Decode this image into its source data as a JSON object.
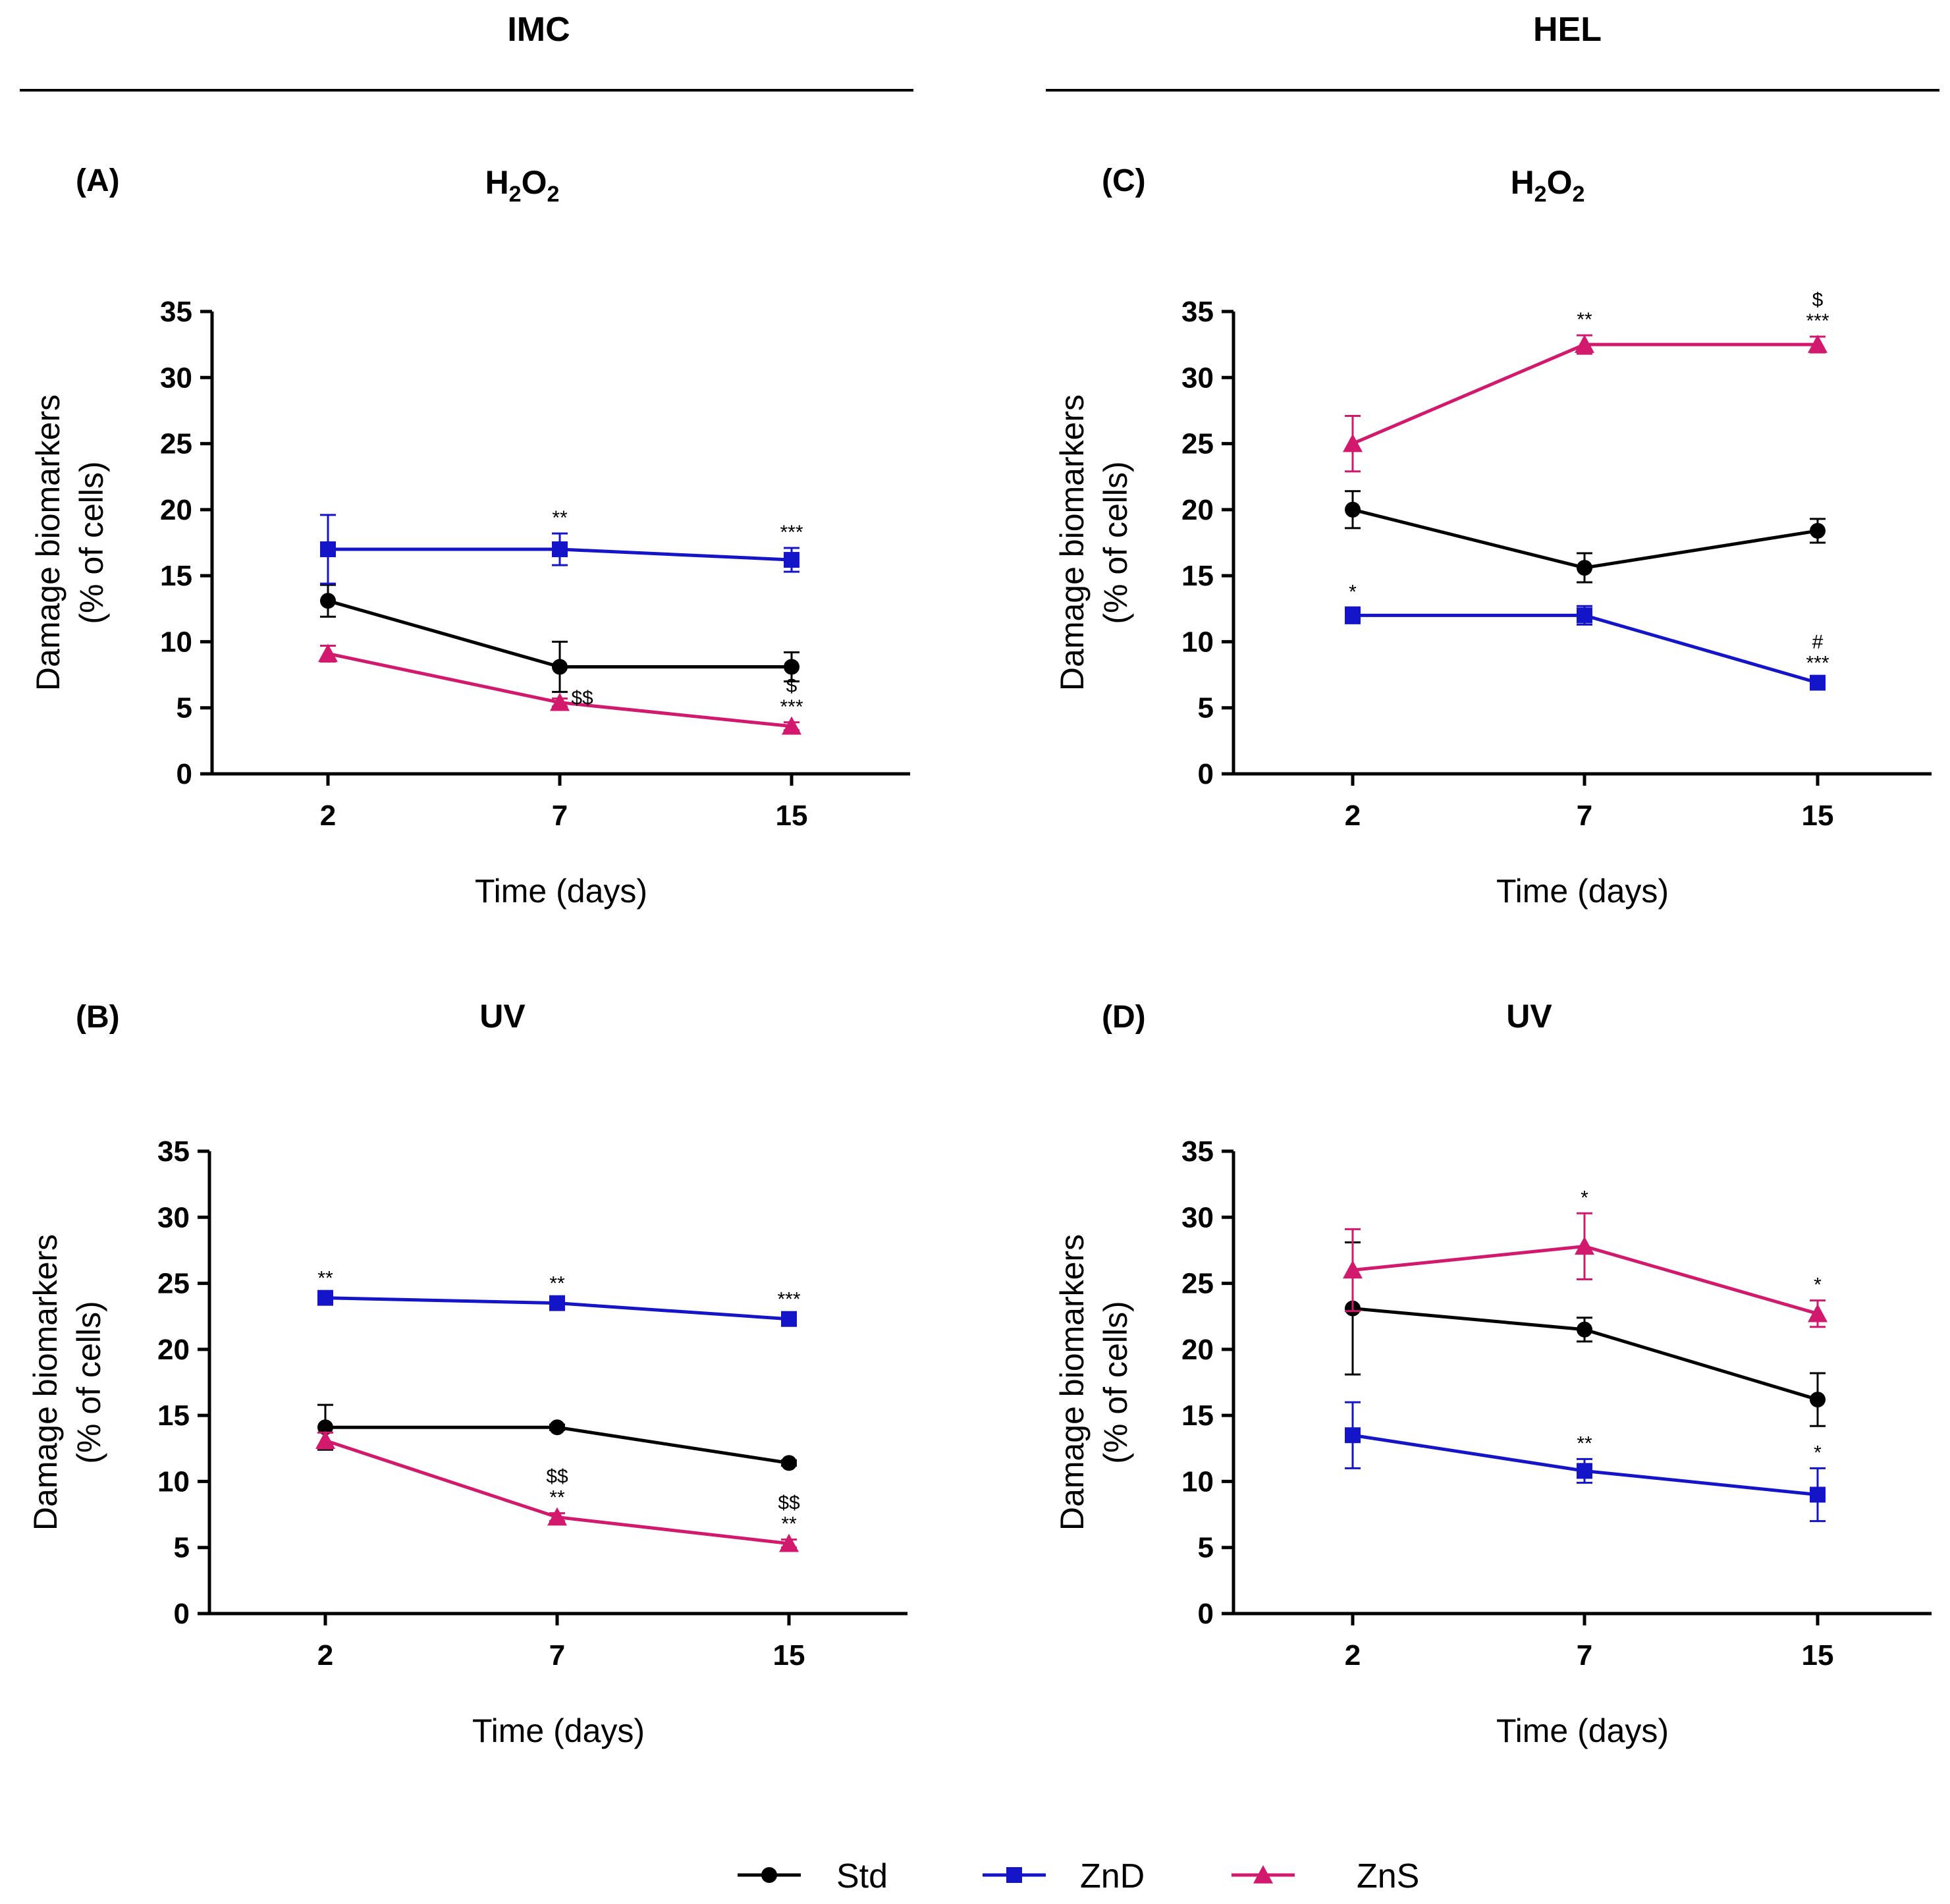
{
  "groups": [
    {
      "title": "IMC"
    },
    {
      "title": "HEL"
    }
  ],
  "colors": {
    "Std": "#000000",
    "ZnD": "#1414c8",
    "ZnS": "#d2196e"
  },
  "legend": [
    {
      "name": "Std",
      "marker": "circle"
    },
    {
      "name": "ZnD",
      "marker": "square"
    },
    {
      "name": "ZnS",
      "marker": "triangle"
    }
  ],
  "chart_data": [
    {
      "type": "line",
      "letter": "(A)",
      "title_main": "H",
      "title_sub1": "2",
      "title_mid": "O",
      "title_sub2": "2",
      "xlabel": "Time (days)",
      "ylabel_line1": "Damage biomarkers",
      "ylabel_line2": "(% of cells)",
      "categories": [
        "2",
        "7",
        "15"
      ],
      "ylim": [
        0,
        35
      ],
      "yticks": [
        "0",
        "5",
        "10",
        "15",
        "20",
        "25",
        "30",
        "35"
      ],
      "series": [
        {
          "name": "Std",
          "values": [
            13.1,
            8.1,
            8.1
          ],
          "errors": [
            1.2,
            1.9,
            1.1
          ],
          "annotations": [
            "",
            "",
            ""
          ]
        },
        {
          "name": "ZnD",
          "values": [
            17.0,
            17.0,
            16.2
          ],
          "errors": [
            2.6,
            1.2,
            0.9
          ],
          "annotations": [
            "",
            "**",
            "***"
          ]
        },
        {
          "name": "ZnS",
          "values": [
            9.1,
            5.4,
            3.6
          ],
          "errors": [
            0.6,
            0.3,
            0.3
          ],
          "annotations": [
            "",
            "$$",
            "$\n***"
          ]
        }
      ]
    },
    {
      "type": "line",
      "letter": "(B)",
      "title_main": "UV",
      "title_sub1": "",
      "title_mid": "",
      "title_sub2": "",
      "xlabel": "Time (days)",
      "ylabel_line1": "Damage biomarkers",
      "ylabel_line2": "(% of cells)",
      "categories": [
        "2",
        "7",
        "15"
      ],
      "ylim": [
        0,
        35
      ],
      "yticks": [
        "0",
        "5",
        "10",
        "15",
        "20",
        "25",
        "30",
        "35"
      ],
      "series": [
        {
          "name": "Std",
          "values": [
            14.1,
            14.1,
            11.4
          ],
          "errors": [
            1.7,
            0.2,
            0.2
          ],
          "annotations": [
            "",
            "",
            ""
          ]
        },
        {
          "name": "ZnD",
          "values": [
            23.9,
            23.5,
            22.3
          ],
          "errors": [
            0.3,
            0.3,
            0.3
          ],
          "annotations": [
            "**",
            "**",
            "***"
          ]
        },
        {
          "name": "ZnS",
          "values": [
            13.1,
            7.3,
            5.3
          ],
          "errors": [
            0.6,
            0.3,
            0.3
          ],
          "annotations": [
            "",
            "$$\n**",
            "$$\n**"
          ]
        }
      ]
    },
    {
      "type": "line",
      "letter": "(C)",
      "title_main": "H",
      "title_sub1": "2",
      "title_mid": "O",
      "title_sub2": "2",
      "xlabel": "Time (days)",
      "ylabel_line1": "Damage biomarkers",
      "ylabel_line2": "(% of cells)",
      "categories": [
        "2",
        "7",
        "15"
      ],
      "ylim": [
        0,
        35
      ],
      "yticks": [
        "0",
        "5",
        "10",
        "15",
        "20",
        "25",
        "30",
        "35"
      ],
      "series": [
        {
          "name": "Std",
          "values": [
            20.0,
            15.6,
            18.4
          ],
          "errors": [
            1.4,
            1.1,
            0.9
          ],
          "annotations": [
            "",
            "",
            ""
          ]
        },
        {
          "name": "ZnD",
          "values": [
            12.0,
            12.0,
            6.9
          ],
          "errors": [
            0.6,
            0.7,
            0.3
          ],
          "annotations": [
            "*",
            "",
            "#\n***"
          ]
        },
        {
          "name": "ZnS",
          "values": [
            25.0,
            32.5,
            32.5
          ],
          "errors": [
            2.1,
            0.7,
            0.6
          ],
          "annotations": [
            "",
            "**",
            "$\n***"
          ]
        }
      ]
    },
    {
      "type": "line",
      "letter": "(D)",
      "title_main": "UV",
      "title_sub1": "",
      "title_mid": "",
      "title_sub2": "",
      "xlabel": "Time (days)",
      "ylabel_line1": "Damage biomarkers",
      "ylabel_line2": "(% of cells)",
      "categories": [
        "2",
        "7",
        "15"
      ],
      "ylim": [
        0,
        35
      ],
      "yticks": [
        "0",
        "5",
        "10",
        "15",
        "20",
        "25",
        "30",
        "35"
      ],
      "series": [
        {
          "name": "Std",
          "values": [
            23.1,
            21.5,
            16.2
          ],
          "errors": [
            5.0,
            0.9,
            2.0
          ],
          "annotations": [
            "",
            "",
            ""
          ]
        },
        {
          "name": "ZnD",
          "values": [
            13.5,
            10.8,
            9.0
          ],
          "errors": [
            2.5,
            0.9,
            2.0
          ],
          "annotations": [
            "",
            "**",
            "*"
          ]
        },
        {
          "name": "ZnS",
          "values": [
            26.0,
            27.8,
            22.7
          ],
          "errors": [
            3.1,
            2.5,
            1.0
          ],
          "annotations": [
            "",
            "*",
            "*"
          ]
        }
      ]
    }
  ]
}
